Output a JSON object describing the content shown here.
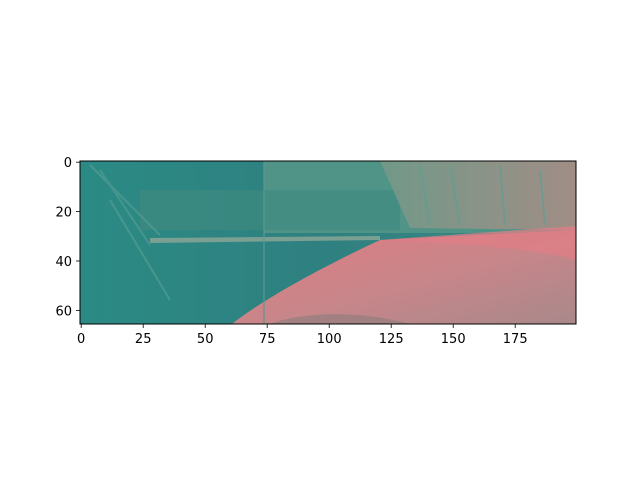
{
  "chart_data": {
    "type": "image",
    "title": "",
    "xlabel": "",
    "ylabel": "",
    "xlim": [
      0,
      200
    ],
    "ylim": [
      66,
      0
    ],
    "xticks": [
      0,
      25,
      50,
      75,
      100,
      125,
      150,
      175
    ],
    "yticks": [
      0,
      20,
      40,
      60
    ],
    "image_description": "Road scene from a dashcam in a shifted color space: teal/green vegetation and barrier on the left, salmon-pink road surface curving to the right, pinkish verge on the far right.",
    "colors": {
      "teal": "#2e8585",
      "teal_light": "#4a9a90",
      "road_pink": "#d9787c",
      "road_mauve": "#b8868a",
      "verge": "#c98a86",
      "sky_band": "#5e9a88"
    }
  }
}
